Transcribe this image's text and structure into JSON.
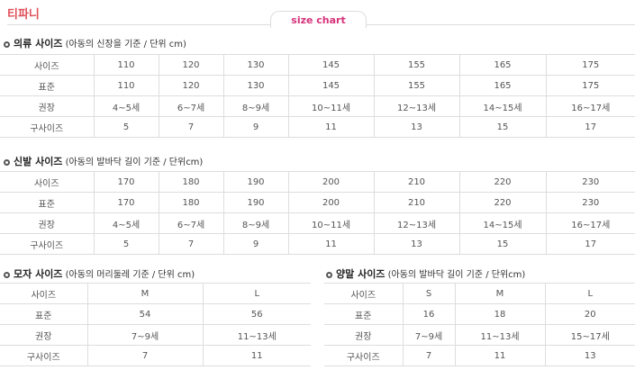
{
  "brand": "티파니",
  "tab": "size chart",
  "clothing": {
    "title": "의류 사이즈",
    "note": "(아동의 신장을 기준 / 단위 cm)",
    "rows": [
      [
        "사이즈",
        "110",
        "120",
        "130",
        "145",
        "155",
        "165",
        "175"
      ],
      [
        "표준",
        "110",
        "120",
        "130",
        "145",
        "155",
        "165",
        "175"
      ],
      [
        "권장",
        "4~5세",
        "6~7세",
        "8~9세",
        "10~11세",
        "12~13세",
        "14~15세",
        "16~17세"
      ],
      [
        "구사이즈",
        "5",
        "7",
        "9",
        "11",
        "13",
        "15",
        "17"
      ]
    ]
  },
  "shoes": {
    "title": "신발 사이즈",
    "note": "(아동의 발바닥 길이 기준 / 단위cm)",
    "rows": [
      [
        "사이즈",
        "170",
        "180",
        "190",
        "200",
        "210",
        "220",
        "230"
      ],
      [
        "표준",
        "170",
        "180",
        "190",
        "200",
        "210",
        "220",
        "230"
      ],
      [
        "권장",
        "4~5세",
        "6~7세",
        "8~9세",
        "10~11세",
        "12~13세",
        "14~15세",
        "16~17세"
      ],
      [
        "구사이즈",
        "5",
        "7",
        "9",
        "11",
        "13",
        "15",
        "17"
      ]
    ]
  },
  "hats": {
    "title": "모자 사이즈",
    "note": "(아동의 머리둘레 기준 / 단위 cm)",
    "rows": [
      [
        "사이즈",
        "M",
        "L"
      ],
      [
        "표준",
        "54",
        "56"
      ],
      [
        "권장",
        "7~9세",
        "11~13세"
      ],
      [
        "구사이즈",
        "7",
        "11"
      ]
    ]
  },
  "socks": {
    "title": "양말 사이즈",
    "note": "(아동의 발바닥 길이 기준 / 단위cm)",
    "rows": [
      [
        "사이즈",
        "S",
        "M",
        "L"
      ],
      [
        "표준",
        "16",
        "18",
        "20"
      ],
      [
        "권장",
        "7~9세",
        "11~13세",
        "15~17세"
      ],
      [
        "구사이즈",
        "7",
        "11",
        "13"
      ]
    ]
  }
}
